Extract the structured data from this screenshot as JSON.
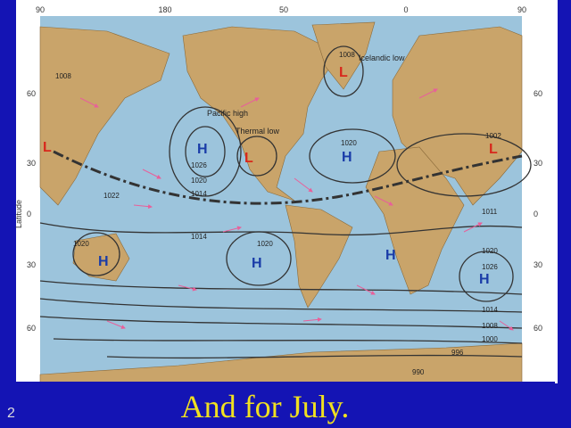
{
  "frame": {
    "top_labels": [
      "90",
      "180",
      "50",
      "0",
      "90"
    ],
    "left_labels": [
      "60",
      "30",
      "0",
      "30",
      "60"
    ],
    "right_labels": [
      "60",
      "30",
      "0",
      "30",
      "60"
    ],
    "axis_title": "Latitude"
  },
  "map_labels": {
    "high_pressure": "H",
    "low_pressure": "L",
    "icelandic_low": "Icelandic low",
    "pacific_high": "Pacific high",
    "thermal_low": "Thermal low",
    "isobars": [
      "1008",
      "1008",
      "1020",
      "1026",
      "1020",
      "1014",
      "1022",
      "1014",
      "1020",
      "1020",
      "1011",
      "1020",
      "1026",
      "1002",
      "1014",
      "1008",
      "1000",
      "996",
      "990"
    ]
  },
  "caption": "And for July.",
  "slide_number": "2"
}
